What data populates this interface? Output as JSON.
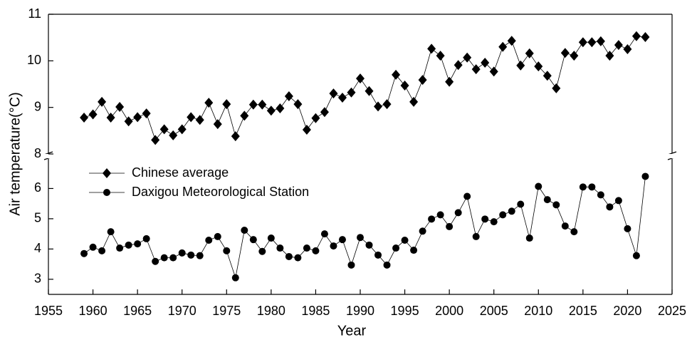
{
  "chart_data": {
    "type": "line",
    "xlabel": "Year",
    "ylabel": "Air temperature(°C)",
    "x": [
      1959,
      1960,
      1961,
      1962,
      1963,
      1964,
      1965,
      1966,
      1967,
      1968,
      1969,
      1970,
      1971,
      1972,
      1973,
      1974,
      1975,
      1976,
      1977,
      1978,
      1979,
      1980,
      1981,
      1982,
      1983,
      1984,
      1985,
      1986,
      1987,
      1988,
      1989,
      1990,
      1991,
      1992,
      1993,
      1994,
      1995,
      1996,
      1997,
      1998,
      1999,
      2000,
      2001,
      2002,
      2003,
      2004,
      2005,
      2006,
      2007,
      2008,
      2009,
      2010,
      2011,
      2012,
      2013,
      2014,
      2015,
      2016,
      2017,
      2018,
      2019,
      2020,
      2021,
      2022
    ],
    "xlim": [
      1955,
      2025
    ],
    "xticks": [
      1955,
      1960,
      1965,
      1970,
      1975,
      1980,
      1985,
      1990,
      1995,
      2000,
      2005,
      2010,
      2015,
      2020,
      2025
    ],
    "ylim": [
      8,
      11
    ],
    "yticks": [
      8,
      9,
      10,
      11
    ],
    "y2lim": [
      2.5,
      7
    ],
    "y2ticks": [
      3,
      4,
      5,
      6
    ],
    "legend": "upper left",
    "series": [
      {
        "name": "Chinese average",
        "color": "#000000",
        "marker": "diamond",
        "values": [
          8.78,
          8.85,
          9.12,
          8.78,
          9.01,
          8.7,
          8.79,
          8.87,
          8.3,
          8.53,
          8.4,
          8.53,
          8.79,
          8.73,
          9.1,
          8.64,
          9.07,
          8.38,
          8.82,
          9.06,
          9.06,
          8.93,
          8.98,
          9.24,
          9.07,
          8.52,
          8.77,
          8.9,
          9.3,
          9.21,
          9.32,
          9.62,
          9.35,
          9.02,
          9.07,
          9.7,
          9.47,
          9.12,
          9.59,
          10.26,
          10.11,
          9.55,
          9.91,
          10.07,
          9.82,
          9.96,
          9.77,
          10.3,
          10.43,
          9.9,
          10.16,
          9.88,
          9.68,
          9.41,
          10.17,
          10.11,
          10.4,
          10.4,
          10.42,
          10.11,
          10.34,
          10.25,
          10.53,
          10.51
        ]
      },
      {
        "name": "Daxigou Meteorological Station",
        "color": "#000000",
        "marker": "circle",
        "axis": "y2",
        "values": [
          3.85,
          4.06,
          3.94,
          4.57,
          4.03,
          4.13,
          4.17,
          4.34,
          3.59,
          3.71,
          3.71,
          3.87,
          3.8,
          3.78,
          4.29,
          4.41,
          3.94,
          3.05,
          4.62,
          4.31,
          3.92,
          4.36,
          4.03,
          3.75,
          3.71,
          4.03,
          3.94,
          4.5,
          4.1,
          4.31,
          3.47,
          4.38,
          4.13,
          3.8,
          3.47,
          4.03,
          4.29,
          3.96,
          4.59,
          4.99,
          5.13,
          4.74,
          5.2,
          5.74,
          4.41,
          4.99,
          4.9,
          5.13,
          5.25,
          5.48,
          4.36,
          6.07,
          5.63,
          5.46,
          4.76,
          4.57,
          6.05,
          6.05,
          5.79,
          5.39,
          5.6,
          4.67,
          3.78,
          6.4
        ]
      }
    ]
  }
}
